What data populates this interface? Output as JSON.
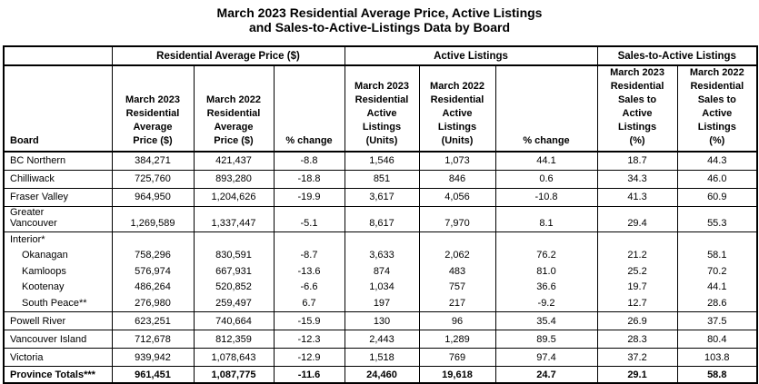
{
  "title": {
    "line1": "March 2023 Residential Average Price, Active Listings",
    "line2": "and Sales-to-Active-Listings Data by Board"
  },
  "table": {
    "board_header": "Board",
    "groups": [
      "Residential Average Price ($)",
      "Active Listings",
      "Sales-to-Active Listings"
    ],
    "col_headers": [
      "March 2023\nResidential\nAverage\nPrice ($)",
      "March 2022\nResidential\nAverage\nPrice ($)",
      "% change",
      "March 2023\nResidential\nActive\nListings\n(Units)",
      "March 2022\nResidential\nActive\nListings\n(Units)",
      "% change",
      "March 2023\nResidential\nSales to\nActive\nListings\n(%)",
      "March 2022\nResidential\nSales to\nActive\nListings\n(%)"
    ],
    "rows": [
      {
        "type": "data",
        "label": "BC Northern",
        "values": [
          "384,271",
          "421,437",
          "-8.8",
          "1,546",
          "1,073",
          "44.1",
          "18.7",
          "44.3"
        ]
      },
      {
        "type": "data",
        "label": "Chilliwack",
        "values": [
          "725,760",
          "893,280",
          "-18.8",
          "851",
          "846",
          "0.6",
          "34.3",
          "46.0"
        ]
      },
      {
        "type": "data",
        "label": "Fraser Valley",
        "values": [
          "964,950",
          "1,204,626",
          "-19.9",
          "3,617",
          "4,056",
          "-10.8",
          "41.3",
          "60.9"
        ]
      },
      {
        "type": "data2line",
        "label": "Greater\nVancouver",
        "values": [
          "1,269,589",
          "1,337,447",
          "-5.1",
          "8,617",
          "7,970",
          "8.1",
          "29.4",
          "55.3"
        ]
      },
      {
        "type": "group",
        "label": "Interior*",
        "subrows": [
          {
            "label": "Okanagan",
            "values": [
              "758,296",
              "830,591",
              "-8.7",
              "3,633",
              "2,062",
              "76.2",
              "21.2",
              "58.1"
            ]
          },
          {
            "label": "Kamloops",
            "values": [
              "576,974",
              "667,931",
              "-13.6",
              "874",
              "483",
              "81.0",
              "25.2",
              "70.2"
            ]
          },
          {
            "label": "Kootenay",
            "values": [
              "486,264",
              "520,852",
              "-6.6",
              "1,034",
              "757",
              "36.6",
              "19.7",
              "44.1"
            ]
          },
          {
            "label": "South Peace**",
            "values": [
              "276,980",
              "259,497",
              "6.7",
              "197",
              "217",
              "-9.2",
              "12.7",
              "28.6"
            ]
          }
        ]
      },
      {
        "type": "data",
        "label": "Powell River",
        "values": [
          "623,251",
          "740,664",
          "-15.9",
          "130",
          "96",
          "35.4",
          "26.9",
          "37.5"
        ]
      },
      {
        "type": "data",
        "label": "Vancouver Island",
        "values": [
          "712,678",
          "812,359",
          "-12.3",
          "2,443",
          "1,289",
          "89.5",
          "28.3",
          "80.4"
        ]
      },
      {
        "type": "data",
        "label": "Victoria",
        "values": [
          "939,942",
          "1,078,643",
          "-12.9",
          "1,518",
          "769",
          "97.4",
          "37.2",
          "103.8"
        ]
      },
      {
        "type": "total",
        "label": "Province Totals***",
        "values": [
          "961,451",
          "1,087,775",
          "-11.6",
          "24,460",
          "19,618",
          "24.7",
          "29.1",
          "58.8"
        ]
      }
    ]
  }
}
